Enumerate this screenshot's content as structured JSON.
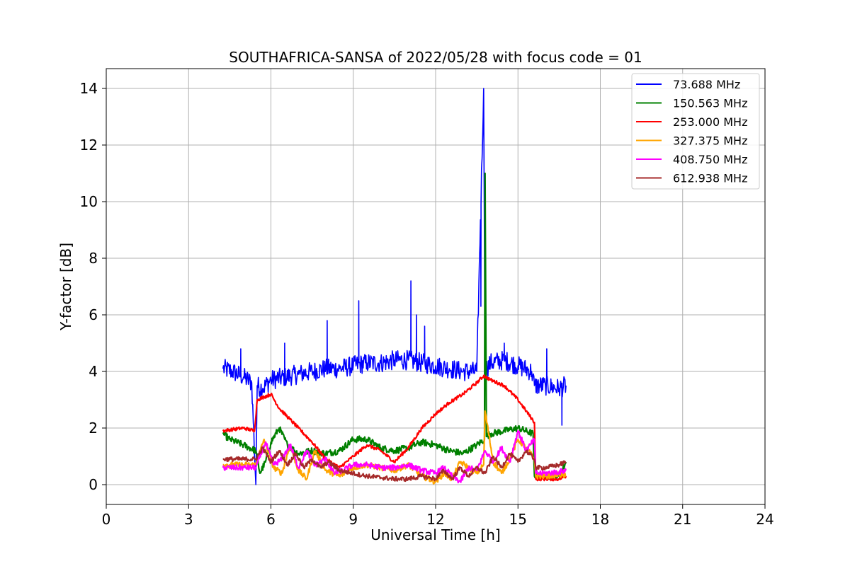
{
  "chart_data": {
    "type": "line",
    "title": "SOUTHAFRICA-SANSA of 2022/05/28 with focus code = 01",
    "xlabel": "Universal Time [h]",
    "ylabel": "Y-factor [dB]",
    "xlim": [
      0,
      24
    ],
    "ylim": [
      -0.7,
      14.7
    ],
    "xticks": [
      0,
      3,
      6,
      9,
      12,
      15,
      18,
      21,
      24
    ],
    "yticks": [
      0,
      2,
      4,
      6,
      8,
      10,
      12,
      14
    ],
    "grid": true,
    "legend_position": "top-right",
    "series": [
      {
        "name": " 73.688 MHz",
        "color": "#0000ff",
        "x": [
          4.25,
          4.6,
          5.0,
          5.3,
          5.45,
          5.5,
          5.7,
          6.0,
          6.5,
          7.0,
          7.5,
          8.0,
          8.5,
          9.0,
          9.5,
          10.0,
          10.5,
          11.0,
          11.5,
          12.0,
          12.5,
          13.0,
          13.5,
          13.75,
          13.8,
          13.85,
          14.0,
          14.5,
          15.0,
          15.5,
          15.6,
          16.0,
          16.5,
          16.75
        ],
        "y": [
          4.1,
          4.0,
          3.8,
          3.6,
          0.0,
          3.5,
          3.4,
          3.7,
          3.8,
          3.9,
          4.0,
          4.1,
          4.1,
          4.2,
          4.3,
          4.3,
          4.4,
          4.4,
          4.3,
          4.2,
          4.1,
          4.0,
          4.0,
          14.0,
          4.0,
          4.1,
          4.3,
          4.4,
          4.2,
          4.0,
          3.5,
          3.5,
          3.4,
          3.5
        ],
        "spikes": [
          [
            4.9,
            4.8
          ],
          [
            5.6,
            3.2
          ],
          [
            6.5,
            5.0
          ],
          [
            8.05,
            5.8
          ],
          [
            9.2,
            6.5
          ],
          [
            11.1,
            7.2
          ],
          [
            11.3,
            6.0
          ],
          [
            11.6,
            5.6
          ],
          [
            13.65,
            6.3
          ],
          [
            14.5,
            5.0
          ],
          [
            16.05,
            4.8
          ],
          [
            16.6,
            2.1
          ]
        ]
      },
      {
        "name": "150.563 MHz",
        "color": "#008000",
        "x": [
          4.25,
          4.5,
          5.0,
          5.45,
          5.6,
          5.8,
          6.0,
          6.3,
          6.6,
          7.0,
          7.5,
          8.0,
          8.5,
          9.0,
          9.5,
          10.0,
          10.5,
          11.0,
          11.5,
          12.0,
          12.5,
          13.0,
          13.5,
          13.78,
          13.8,
          13.85,
          14.0,
          14.5,
          15.0,
          15.55,
          15.6,
          16.0,
          16.5,
          16.75
        ],
        "y": [
          1.8,
          1.6,
          1.4,
          1.2,
          0.4,
          0.8,
          1.5,
          2.0,
          1.4,
          1.1,
          1.2,
          1.1,
          1.2,
          1.6,
          1.6,
          1.3,
          1.2,
          1.3,
          1.5,
          1.4,
          1.2,
          1.1,
          1.4,
          1.6,
          11.0,
          1.7,
          1.8,
          1.9,
          2.0,
          1.8,
          0.3,
          0.3,
          0.3,
          0.8
        ]
      },
      {
        "name": "253.000 MHz",
        "color": "#ff0000",
        "x": [
          4.25,
          4.6,
          5.0,
          5.4,
          5.5,
          5.75,
          6.0,
          6.3,
          6.7,
          7.0,
          7.5,
          8.0,
          8.5,
          9.0,
          9.5,
          10.0,
          10.5,
          11.0,
          11.5,
          12.0,
          12.5,
          13.0,
          13.5,
          13.75,
          14.0,
          14.5,
          15.0,
          15.3,
          15.6,
          15.65,
          16.0,
          16.5,
          16.75
        ],
        "y": [
          1.9,
          1.95,
          2.0,
          1.9,
          3.0,
          3.1,
          3.2,
          2.7,
          2.3,
          2.0,
          1.5,
          0.9,
          0.6,
          1.0,
          1.4,
          1.2,
          0.8,
          1.3,
          2.0,
          2.5,
          2.9,
          3.2,
          3.6,
          3.85,
          3.7,
          3.5,
          3.0,
          2.6,
          2.2,
          0.2,
          0.2,
          0.2,
          0.3
        ]
      },
      {
        "name": "327.375 MHz",
        "color": "#ffa500",
        "x": [
          4.25,
          5.0,
          5.45,
          5.75,
          6.1,
          6.4,
          6.7,
          7.0,
          7.3,
          7.6,
          8.0,
          8.5,
          9.0,
          9.5,
          10.0,
          10.5,
          11.0,
          11.5,
          12.0,
          12.3,
          12.6,
          12.9,
          13.2,
          13.5,
          13.75,
          13.8,
          14.1,
          14.4,
          14.7,
          15.0,
          15.3,
          15.6,
          15.65,
          16.0,
          16.5,
          16.75
        ],
        "y": [
          0.7,
          0.7,
          0.7,
          1.6,
          0.6,
          0.4,
          1.4,
          0.5,
          0.2,
          1.2,
          0.5,
          0.3,
          0.6,
          0.7,
          0.6,
          0.5,
          0.7,
          0.3,
          0.1,
          0.4,
          0.2,
          0.8,
          0.6,
          0.4,
          0.7,
          2.6,
          0.8,
          0.4,
          0.9,
          1.6,
          1.3,
          0.9,
          0.3,
          0.3,
          0.35,
          0.3
        ]
      },
      {
        "name": "408.750 MHz",
        "color": "#ff00ff",
        "x": [
          4.25,
          5.0,
          5.45,
          5.8,
          6.1,
          6.4,
          6.7,
          7.0,
          7.3,
          7.6,
          8.0,
          8.3,
          8.6,
          9.0,
          9.5,
          10.0,
          10.5,
          11.0,
          11.5,
          12.0,
          12.3,
          12.6,
          12.9,
          13.2,
          13.5,
          13.8,
          14.1,
          14.4,
          14.7,
          15.0,
          15.3,
          15.6,
          15.65,
          16.0,
          16.5,
          16.75
        ],
        "y": [
          0.6,
          0.6,
          0.6,
          1.5,
          0.7,
          0.9,
          1.4,
          0.6,
          1.2,
          0.7,
          0.9,
          0.4,
          0.5,
          0.7,
          0.7,
          0.6,
          0.6,
          0.7,
          0.5,
          0.4,
          0.6,
          0.3,
          0.1,
          0.6,
          0.5,
          1.2,
          0.8,
          1.3,
          0.8,
          1.9,
          1.2,
          1.6,
          0.4,
          0.4,
          0.45,
          0.5
        ]
      },
      {
        "name": "612.938 MHz",
        "color": "#a52a2a",
        "x": [
          4.25,
          5.0,
          5.45,
          5.7,
          6.0,
          6.3,
          6.6,
          6.9,
          7.2,
          7.5,
          7.8,
          8.1,
          8.5,
          9.0,
          9.5,
          10.0,
          10.5,
          11.0,
          11.5,
          12.0,
          12.3,
          12.6,
          12.9,
          13.2,
          13.5,
          13.8,
          14.1,
          14.4,
          14.7,
          15.0,
          15.3,
          15.6,
          15.65,
          16.0,
          16.5,
          16.75
        ],
        "y": [
          0.9,
          0.9,
          0.9,
          1.3,
          0.8,
          1.2,
          0.7,
          1.1,
          0.6,
          0.9,
          0.6,
          0.8,
          0.5,
          0.4,
          0.3,
          0.25,
          0.2,
          0.2,
          0.3,
          0.2,
          0.5,
          0.2,
          0.6,
          0.3,
          0.6,
          0.4,
          1.0,
          0.6,
          1.1,
          0.8,
          1.2,
          0.9,
          0.6,
          0.6,
          0.7,
          0.8
        ]
      }
    ]
  }
}
